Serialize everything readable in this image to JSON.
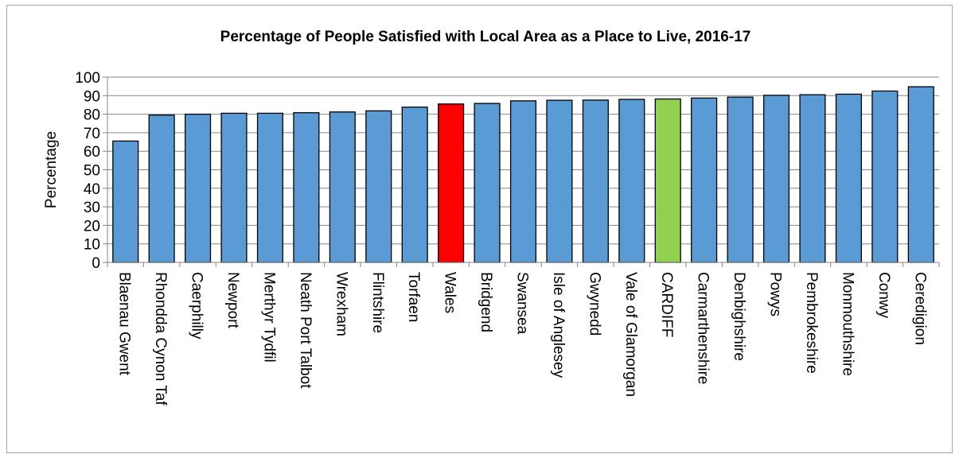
{
  "chart_data": {
    "type": "bar",
    "title": "Percentage of People Satisfied with Local Area as a Place to Live, 2016-17",
    "xlabel": "",
    "ylabel": "Percentage",
    "ylim": [
      0,
      100
    ],
    "yticks": [
      0,
      10,
      20,
      30,
      40,
      50,
      60,
      70,
      80,
      90,
      100
    ],
    "grid": true,
    "legend": "none",
    "categories": [
      "Blaenau Gwent",
      "Rhondda Cynon Taf",
      "Caerphilly",
      "Newport",
      "Merthyr Tydfil",
      "Neath Port Talbot",
      "Wrexham",
      "Flintshire",
      "Torfaen",
      "Wales",
      "Bridgend",
      "Swansea",
      "Isle of Anglesey",
      "Gwynedd",
      "Vale of Glamorgan",
      "CARDIFF",
      "Carmarthenshire",
      "Denbighshire",
      "Powys",
      "Pembrokeshire",
      "Monmouthshire",
      "Conwy",
      "Ceredigion"
    ],
    "values": [
      65.5,
      79.5,
      80,
      80.5,
      80.5,
      80.8,
      81.2,
      81.8,
      83.8,
      85.5,
      85.8,
      87.2,
      87.5,
      87.6,
      88,
      88.2,
      88.7,
      89.2,
      90.2,
      90.5,
      90.8,
      92.5,
      94.8
    ],
    "colors": {
      "default": "#5b9bd5",
      "Wales": "#ff0000",
      "CARDIFF": "#92d050",
      "outline": "#000000",
      "grid": "#868686"
    }
  }
}
